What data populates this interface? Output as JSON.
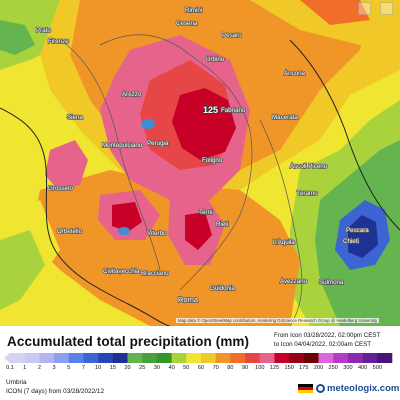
{
  "title": "Accumulated total precipitation (mm)",
  "run": {
    "from_line": "From Icon 03/28/2022, 02:00pm CEST",
    "to_line": "to Icon 04/04/2022, 02:00am CEST"
  },
  "region": "Umbria",
  "model_line": "ICON (7 days) from 03/28/2022/12",
  "brand": "meteologix.com",
  "attribution": "Map data © OpenStreetMap contributors, rendering GIScience Research Group @ Heidelberg University",
  "legend": {
    "labels": [
      "0.1",
      "1",
      "2",
      "3",
      "5",
      "7",
      "10",
      "15",
      "20",
      "25",
      "30",
      "40",
      "50",
      "60",
      "70",
      "80",
      "90",
      "100",
      "125",
      "150",
      "175",
      "200",
      "250",
      "300",
      "400",
      "500"
    ],
    "colors": [
      "#d4d4f0",
      "#c8c8f5",
      "#b4b4f0",
      "#8ca0f0",
      "#5a82e6",
      "#3c64d2",
      "#2846b4",
      "#1e3296",
      "#64b450",
      "#46a03c",
      "#329628",
      "#aad23c",
      "#f0e632",
      "#f0c828",
      "#f09628",
      "#f06e28",
      "#e64646",
      "#e6648c",
      "#c80028",
      "#960014",
      "#6e0000",
      "#dc64dc",
      "#b43cc8",
      "#8c28b4",
      "#641e96",
      "#461478"
    ]
  },
  "cities": [
    {
      "name": "Firenze",
      "big": false
    },
    {
      "name": "Prato",
      "big": false
    },
    {
      "name": "Pesaro",
      "big": false
    },
    {
      "name": "Rimini",
      "big": false
    },
    {
      "name": "Urbino",
      "big": false
    },
    {
      "name": "Ancona",
      "big": false
    },
    {
      "name": "Siena",
      "big": false
    },
    {
      "name": "Arezzo",
      "big": false
    },
    {
      "name": "Perugia",
      "big": false
    },
    {
      "name": "Fabriano",
      "big": false
    },
    {
      "name": "Foligno",
      "big": false
    },
    {
      "name": "Macerata",
      "big": false
    },
    {
      "name": "Grosseto",
      "big": false
    },
    {
      "name": "Terni",
      "big": false
    },
    {
      "name": "Viterbo",
      "big": false
    },
    {
      "name": "Rieti",
      "big": false
    },
    {
      "name": "Pescara",
      "big": false
    },
    {
      "name": "Chieti",
      "big": false
    },
    {
      "name": "L'Aquila",
      "big": false
    },
    {
      "name": "Sulmona",
      "big": false
    },
    {
      "name": "Roma",
      "big": true
    },
    {
      "name": "Civitavecchia",
      "big": false
    },
    {
      "name": "Bracciano",
      "big": false
    },
    {
      "name": "Orbetello",
      "big": false
    },
    {
      "name": "Montepulciano",
      "big": false
    },
    {
      "name": "Teramo",
      "big": false
    },
    {
      "name": "Ascoli Piceno",
      "big": false
    },
    {
      "name": "Avezzano",
      "big": false
    },
    {
      "name": "Cesena",
      "big": false
    },
    {
      "name": "Guidonia",
      "big": false
    }
  ],
  "max_value_label": "125",
  "colors": {
    "brand_blue": "#1e4b8f",
    "flag_black": "#000000",
    "flag_red": "#dd0000",
    "flag_gold": "#ffce00"
  }
}
